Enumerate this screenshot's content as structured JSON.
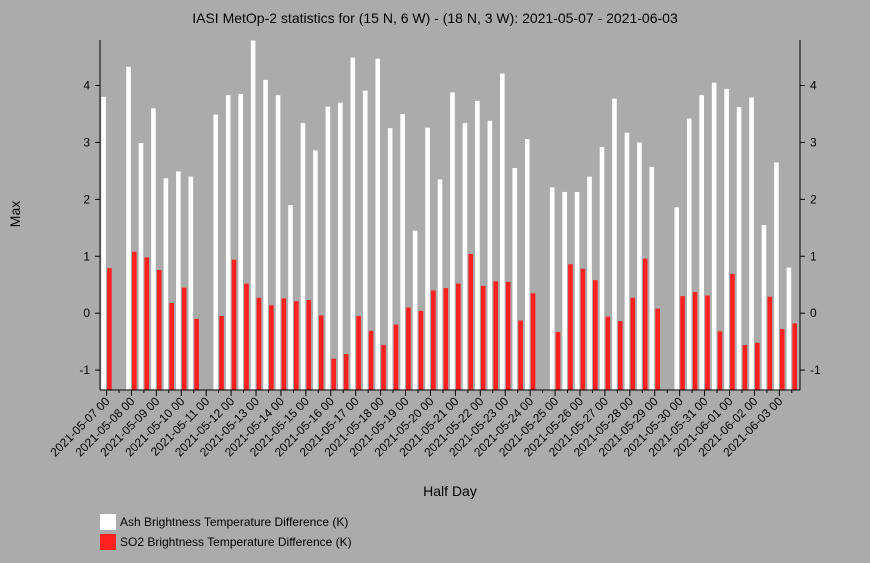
{
  "chart_data": {
    "type": "bar",
    "title": "IASI MetOp-2 statistics for (15 N, 6 W) - (18 N, 3 W): 2021-05-07 - 2021-06-03",
    "xlabel": "Half Day",
    "ylabel": "Max",
    "ylim": [
      -1.35,
      4.8
    ],
    "yticks": [
      -1,
      0,
      1,
      2,
      3,
      4
    ],
    "grid": false,
    "legend_position": "bottom-left",
    "x_tick_labels": [
      "2021-05-07 00",
      "2021-05-08 00",
      "2021-05-09 00",
      "2021-05-10 00",
      "2021-05-11 00",
      "2021-05-12 00",
      "2021-05-13 00",
      "2021-05-14 00",
      "2021-05-15 00",
      "2021-05-16 00",
      "2021-05-17 00",
      "2021-05-18 00",
      "2021-05-19 00",
      "2021-05-20 00",
      "2021-05-21 00",
      "2021-05-22 00",
      "2021-05-23 00",
      "2021-05-24 00",
      "2021-05-25 00",
      "2021-05-26 00",
      "2021-05-27 00",
      "2021-05-28 00",
      "2021-05-29 00",
      "2021-05-30 00",
      "2021-05-31 00",
      "2021-06-01 00",
      "2021-06-02 00",
      "2021-06-03 00"
    ],
    "series": [
      {
        "name": "Ash Brightness Temperature Difference (K)",
        "color": "#ffffff",
        "values": [
          3.8,
          null,
          4.33,
          2.99,
          3.6,
          2.37,
          2.49,
          2.4,
          null,
          3.49,
          3.83,
          3.85,
          4.79,
          4.1,
          3.83,
          1.9,
          3.34,
          2.86,
          3.63,
          3.7,
          4.49,
          3.91,
          4.47,
          3.25,
          3.5,
          1.45,
          3.26,
          2.35,
          3.88,
          3.34,
          3.73,
          3.38,
          4.21,
          2.55,
          3.06,
          null,
          2.21,
          2.13,
          2.13,
          2.4,
          2.92,
          3.77,
          3.17,
          3.0,
          2.57,
          null,
          1.86,
          3.42,
          3.83,
          4.05,
          3.94,
          3.62,
          3.79,
          1.55,
          2.65,
          0.8
        ]
      },
      {
        "name": "SO2 Brightness Temperature Difference (K)",
        "color": "#ff2020",
        "values": [
          0.79,
          null,
          1.08,
          0.98,
          0.76,
          0.18,
          0.45,
          -0.1,
          null,
          -0.05,
          0.94,
          0.52,
          0.27,
          0.14,
          0.26,
          0.21,
          0.23,
          -0.04,
          -0.8,
          -0.72,
          -0.05,
          -0.31,
          -0.56,
          -0.2,
          0.1,
          0.04,
          0.4,
          0.44,
          0.52,
          1.04,
          0.48,
          0.56,
          0.55,
          -0.13,
          0.35,
          null,
          -0.33,
          0.86,
          0.78,
          0.58,
          -0.06,
          -0.14,
          0.27,
          0.96,
          0.08,
          null,
          0.3,
          0.37,
          0.31,
          -0.32,
          0.69,
          -0.56,
          -0.52,
          0.29,
          -0.28,
          -0.18
        ]
      }
    ]
  }
}
